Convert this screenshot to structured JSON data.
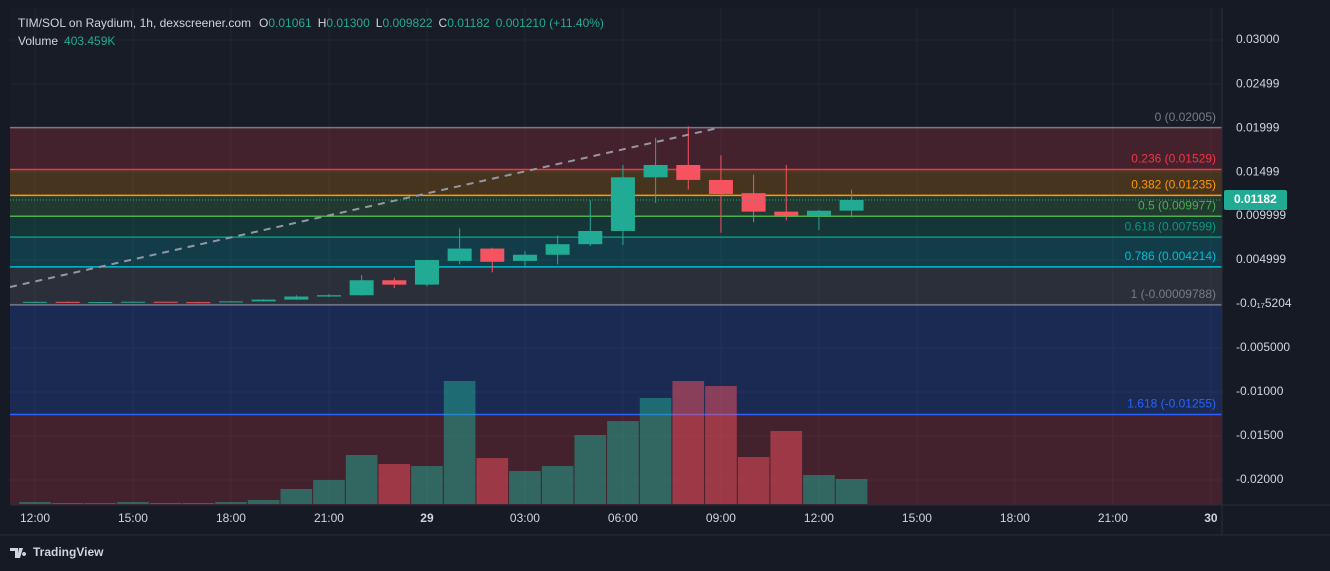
{
  "chart_data": {
    "type": "candlestick",
    "title": "TIM/SOL on Raydium, 1h, dexscreener.com",
    "ohlc_legend": [
      {
        "key": "O",
        "value": "0.01061"
      },
      {
        "key": "H",
        "value": "0.01300"
      },
      {
        "key": "L",
        "value": "0.009822"
      },
      {
        "key": "C",
        "value": "0.01182"
      }
    ],
    "change": "0.001210 (+11.40%)",
    "volume_legend": {
      "name": "Volume",
      "value": "403.459K"
    },
    "x": [
      0,
      1,
      2,
      3,
      4,
      5,
      6,
      7,
      8,
      9,
      10,
      11,
      12,
      13,
      14,
      15,
      16,
      17,
      18,
      19,
      20,
      21,
      22,
      23,
      24,
      25
    ],
    "open": [
      0.0002,
      0.00025,
      0.00018,
      0.00022,
      0.00026,
      0.00021,
      0.00018,
      0.0003,
      0.0005,
      0.00085,
      0.001,
      0.0027,
      0.0022,
      0.0049,
      0.0063,
      0.0049,
      0.0056,
      0.0068,
      0.0083,
      0.0144,
      0.0158,
      0.0141,
      0.0126,
      0.0105,
      0.01,
      0.01061
    ],
    "high": [
      0.0003,
      0.00028,
      0.00025,
      0.0003,
      0.00028,
      0.00024,
      0.00034,
      0.00055,
      0.001,
      0.00115,
      0.0033,
      0.003,
      0.005,
      0.0086,
      0.0064,
      0.006,
      0.0078,
      0.0118,
      0.0158,
      0.0189,
      0.0202,
      0.0169,
      0.0147,
      0.0158,
      0.0107,
      0.013
    ],
    "low": [
      0.00015,
      0.00015,
      0.00016,
      0.0002,
      0.00019,
      0.00016,
      0.00017,
      0.00028,
      0.00048,
      0.0008,
      0.00095,
      0.0018,
      0.002,
      0.0045,
      0.0036,
      0.0041,
      0.0045,
      0.0066,
      0.0067,
      0.0115,
      0.013,
      0.0081,
      0.0093,
      0.0095,
      0.0084,
      0.009822
    ],
    "close": [
      0.00025,
      0.00018,
      0.00022,
      0.00026,
      0.00021,
      0.00018,
      0.0003,
      0.0005,
      0.00085,
      0.001,
      0.0027,
      0.0022,
      0.005,
      0.0063,
      0.0048,
      0.0056,
      0.0068,
      0.0083,
      0.0144,
      0.0158,
      0.0141,
      0.0125,
      0.0105,
      0.01,
      0.0106,
      0.01182
    ],
    "volume": [
      32000,
      16000,
      16000,
      32000,
      16000,
      16000,
      32000,
      65000,
      242000,
      387000,
      791000,
      645000,
      613000,
      1985000,
      742000,
      533000,
      613000,
      1113000,
      1339000,
      1711000,
      1985000,
      1904000,
      758000,
      1178000,
      468000,
      403459
    ],
    "up_color": "#22ab94",
    "down_color": "#f7525f",
    "last_price": 0.01182,
    "xlim": [
      -0.765,
      36.34
    ],
    "xticks": [
      {
        "value": 0,
        "label": "12:00"
      },
      {
        "value": 3,
        "label": "15:00"
      },
      {
        "value": 6,
        "label": "18:00"
      },
      {
        "value": 9,
        "label": "21:00"
      },
      {
        "value": 12,
        "label": "29"
      },
      {
        "value": 15,
        "label": "03:00"
      },
      {
        "value": 18,
        "label": "06:00"
      },
      {
        "value": 21,
        "label": "09:00"
      },
      {
        "value": 24,
        "label": "12:00"
      },
      {
        "value": 27,
        "label": "15:00"
      },
      {
        "value": 30,
        "label": "18:00"
      },
      {
        "value": 33,
        "label": "21:00"
      },
      {
        "value": 36,
        "label": "30"
      }
    ],
    "ylim": [
      -0.02284,
      0.03364
    ],
    "yticks": [
      {
        "value": 0.03,
        "label": "0.03000"
      },
      {
        "value": 0.02499,
        "label": "0.02499"
      },
      {
        "value": 0.01999,
        "label": "0.01999"
      },
      {
        "value": 0.01499,
        "label": "0.01499"
      },
      {
        "value": 0.009999,
        "label": "0.009999"
      },
      {
        "value": 0.004999,
        "label": "0.004999"
      },
      {
        "value": -5.204e-19,
        "label": "-0.0₁₇5204"
      },
      {
        "value": -0.005,
        "label": "-0.005000"
      },
      {
        "value": -0.01,
        "label": "-0.01000"
      },
      {
        "value": -0.015,
        "label": "-0.01500"
      },
      {
        "value": -0.02,
        "label": "-0.02000"
      }
    ],
    "grid": true,
    "fib_levels": [
      {
        "value": 0.02005,
        "label": "0 (0.02005)",
        "color": "#787b86"
      },
      {
        "value": 0.01529,
        "label": "0.236 (0.01529)",
        "color": "#f23645"
      },
      {
        "value": 0.01235,
        "label": "0.382 (0.01235)",
        "color": "#ff9800"
      },
      {
        "value": 0.009977,
        "label": "0.5 (0.009977)",
        "color": "#4caf50"
      },
      {
        "value": 0.007599,
        "label": "0.618 (0.007599)",
        "color": "#089981"
      },
      {
        "value": 0.004214,
        "label": "0.786 (0.004214)",
        "color": "#00bcd4"
      },
      {
        "value": -9.788e-05,
        "label": "1 (-0.00009788)",
        "color": "#787b86"
      },
      {
        "value": -0.01255,
        "label": "1.618 (-0.01255)",
        "color": "#2962ff"
      }
    ],
    "fib_fill_below": "#f23645",
    "trend_line": {
      "x": [
        -0.765,
        20.97
      ],
      "y": [
        0.00193,
        0.02005
      ]
    }
  },
  "brand": "TradingView"
}
